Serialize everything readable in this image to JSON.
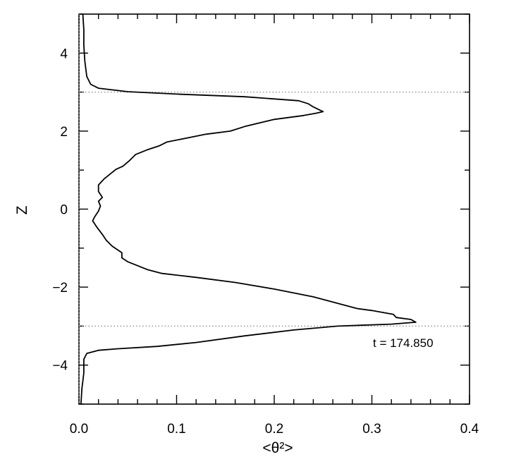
{
  "chart_data": {
    "type": "line",
    "title": "",
    "xlabel": "<θ²>",
    "ylabel": "Z",
    "xlim": [
      0.0,
      0.4
    ],
    "ylim": [
      -5,
      5
    ],
    "x_ticks": [
      0.0,
      0.1,
      0.2,
      0.3,
      0.4
    ],
    "x_tick_labels": [
      "0.0",
      "0.1",
      "0.2",
      "0.3",
      "0.4"
    ],
    "y_ticks": [
      -4,
      -2,
      0,
      2,
      4
    ],
    "y_tick_labels": [
      "−4",
      "−2",
      "0",
      "2",
      "4"
    ],
    "grid": false,
    "reference_lines": {
      "horizontal": [
        3,
        -3
      ],
      "vertical": [
        0.0
      ],
      "style": "dotted"
    },
    "annotation": "t = 174.850",
    "series": [
      {
        "points": [
          [
            0.004,
            5.0
          ],
          [
            0.005,
            4.6
          ],
          [
            0.005,
            4.2
          ],
          [
            0.006,
            3.8
          ],
          [
            0.008,
            3.4
          ],
          [
            0.012,
            3.2
          ],
          [
            0.02,
            3.1
          ],
          [
            0.05,
            3.01
          ],
          [
            0.1,
            2.95
          ],
          [
            0.17,
            2.88
          ],
          [
            0.225,
            2.78
          ],
          [
            0.235,
            2.7
          ],
          [
            0.24,
            2.62
          ],
          [
            0.245,
            2.56
          ],
          [
            0.25,
            2.5
          ],
          [
            0.243,
            2.46
          ],
          [
            0.23,
            2.4
          ],
          [
            0.2,
            2.3
          ],
          [
            0.17,
            2.12
          ],
          [
            0.155,
            2.0
          ],
          [
            0.13,
            1.92
          ],
          [
            0.11,
            1.82
          ],
          [
            0.09,
            1.72
          ],
          [
            0.082,
            1.62
          ],
          [
            0.07,
            1.52
          ],
          [
            0.058,
            1.4
          ],
          [
            0.052,
            1.25
          ],
          [
            0.045,
            1.1
          ],
          [
            0.038,
            1.02
          ],
          [
            0.032,
            0.9
          ],
          [
            0.026,
            0.78
          ],
          [
            0.02,
            0.62
          ],
          [
            0.02,
            0.45
          ],
          [
            0.024,
            0.3
          ],
          [
            0.02,
            0.2
          ],
          [
            0.022,
            0.08
          ],
          [
            0.02,
            -0.05
          ],
          [
            0.016,
            -0.2
          ],
          [
            0.014,
            -0.3
          ],
          [
            0.018,
            -0.45
          ],
          [
            0.024,
            -0.65
          ],
          [
            0.028,
            -0.8
          ],
          [
            0.034,
            -0.95
          ],
          [
            0.04,
            -1.05
          ],
          [
            0.044,
            -1.12
          ],
          [
            0.044,
            -1.25
          ],
          [
            0.05,
            -1.35
          ],
          [
            0.06,
            -1.45
          ],
          [
            0.07,
            -1.55
          ],
          [
            0.085,
            -1.65
          ],
          [
            0.12,
            -1.75
          ],
          [
            0.16,
            -1.88
          ],
          [
            0.2,
            -2.05
          ],
          [
            0.24,
            -2.25
          ],
          [
            0.27,
            -2.45
          ],
          [
            0.285,
            -2.55
          ],
          [
            0.3,
            -2.6
          ],
          [
            0.322,
            -2.7
          ],
          [
            0.325,
            -2.78
          ],
          [
            0.34,
            -2.83
          ],
          [
            0.345,
            -2.9
          ],
          [
            0.32,
            -2.95
          ],
          [
            0.265,
            -3.0
          ],
          [
            0.22,
            -3.1
          ],
          [
            0.17,
            -3.25
          ],
          [
            0.12,
            -3.42
          ],
          [
            0.08,
            -3.52
          ],
          [
            0.04,
            -3.58
          ],
          [
            0.02,
            -3.62
          ],
          [
            0.008,
            -3.7
          ],
          [
            0.005,
            -3.85
          ],
          [
            0.005,
            -4.2
          ],
          [
            0.003,
            -4.6
          ],
          [
            0.002,
            -5.0
          ]
        ]
      }
    ]
  }
}
